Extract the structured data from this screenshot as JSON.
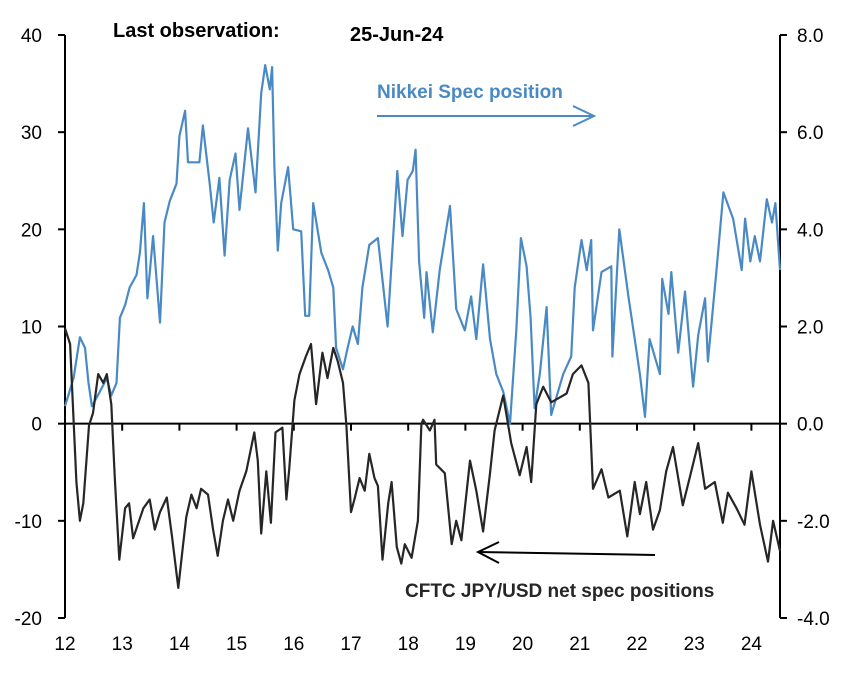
{
  "header": {
    "last_obs_label": "Last observation:",
    "last_obs_date": "25-Jun-24"
  },
  "annotations": {
    "nikkei_label": "Nikkei Spec position",
    "cftc_label": "CFTC JPY/USD net spec positions"
  },
  "colors": {
    "nikkei": "#4a8ac4",
    "cftc": "#262626",
    "axis": "#000000"
  },
  "chart_data": {
    "type": "line",
    "title": "",
    "grid": false,
    "x_ticks": [
      "12",
      "13",
      "14",
      "15",
      "16",
      "17",
      "18",
      "19",
      "20",
      "21",
      "22",
      "23",
      "24"
    ],
    "xlim": [
      12,
      24.5
    ],
    "y_left": {
      "lim": [
        -20,
        40
      ],
      "ticks": [
        "-20",
        "-10",
        "0",
        "10",
        "20",
        "30",
        "40"
      ]
    },
    "y_right": {
      "lim": [
        -4,
        8
      ],
      "ticks": [
        "-4.0",
        "-2.0",
        "0.0",
        "2.0",
        "4.0",
        "6.0",
        "8.0"
      ]
    },
    "series": [
      {
        "name": "Nikkei Spec position",
        "axis": "right",
        "points": [
          [
            12.0,
            0.36
          ],
          [
            12.15,
            0.94
          ],
          [
            12.26,
            1.78
          ],
          [
            12.35,
            1.56
          ],
          [
            12.41,
            0.84
          ],
          [
            12.47,
            0.36
          ],
          [
            12.61,
            0.66
          ],
          [
            12.73,
            0.94
          ],
          [
            12.81,
            0.58
          ],
          [
            12.9,
            0.84
          ],
          [
            12.96,
            2.18
          ],
          [
            13.05,
            2.44
          ],
          [
            13.13,
            2.8
          ],
          [
            13.25,
            3.06
          ],
          [
            13.31,
            3.52
          ],
          [
            13.38,
            4.54
          ],
          [
            13.44,
            2.58
          ],
          [
            13.54,
            3.86
          ],
          [
            13.66,
            2.08
          ],
          [
            13.74,
            4.14
          ],
          [
            13.83,
            4.58
          ],
          [
            13.95,
            4.94
          ],
          [
            14.0,
            5.92
          ],
          [
            14.1,
            6.44
          ],
          [
            14.15,
            5.38
          ],
          [
            14.35,
            5.38
          ],
          [
            14.41,
            6.14
          ],
          [
            14.53,
            4.94
          ],
          [
            14.6,
            4.14
          ],
          [
            14.7,
            5.06
          ],
          [
            14.79,
            3.46
          ],
          [
            14.88,
            5.02
          ],
          [
            14.98,
            5.56
          ],
          [
            15.05,
            4.4
          ],
          [
            15.2,
            6.08
          ],
          [
            15.33,
            4.76
          ],
          [
            15.43,
            6.8
          ],
          [
            15.5,
            7.38
          ],
          [
            15.58,
            6.88
          ],
          [
            15.62,
            7.34
          ],
          [
            15.66,
            5.28
          ],
          [
            15.72,
            3.56
          ],
          [
            15.78,
            4.54
          ],
          [
            15.9,
            5.28
          ],
          [
            15.99,
            4.0
          ],
          [
            16.13,
            3.96
          ],
          [
            16.2,
            2.22
          ],
          [
            16.27,
            2.22
          ],
          [
            16.34,
            4.54
          ],
          [
            16.48,
            3.52
          ],
          [
            16.6,
            3.16
          ],
          [
            16.69,
            2.8
          ],
          [
            16.74,
            1.56
          ],
          [
            16.86,
            1.12
          ],
          [
            16.94,
            1.56
          ],
          [
            17.03,
            2.0
          ],
          [
            17.12,
            1.64
          ],
          [
            17.2,
            2.8
          ],
          [
            17.32,
            3.68
          ],
          [
            17.47,
            3.82
          ],
          [
            17.64,
            2.0
          ],
          [
            17.81,
            5.2
          ],
          [
            17.9,
            3.86
          ],
          [
            17.99,
            5.02
          ],
          [
            18.08,
            5.2
          ],
          [
            18.13,
            5.64
          ],
          [
            18.19,
            3.34
          ],
          [
            18.28,
            2.18
          ],
          [
            18.32,
            3.12
          ],
          [
            18.43,
            1.88
          ],
          [
            18.55,
            3.16
          ],
          [
            18.73,
            4.48
          ],
          [
            18.84,
            2.36
          ],
          [
            18.99,
            1.92
          ],
          [
            19.1,
            2.62
          ],
          [
            19.19,
            1.74
          ],
          [
            19.31,
            3.28
          ],
          [
            19.43,
            1.74
          ],
          [
            19.54,
            1.02
          ],
          [
            19.66,
            0.66
          ],
          [
            19.78,
            0.0
          ],
          [
            19.89,
            1.92
          ],
          [
            19.97,
            3.82
          ],
          [
            20.07,
            3.24
          ],
          [
            20.14,
            2.18
          ],
          [
            20.21,
            0.32
          ],
          [
            20.3,
            1.02
          ],
          [
            20.42,
            2.4
          ],
          [
            20.5,
            0.18
          ],
          [
            20.71,
            1.02
          ],
          [
            20.85,
            1.38
          ],
          [
            20.91,
            2.8
          ],
          [
            21.03,
            3.78
          ],
          [
            21.12,
            3.16
          ],
          [
            21.2,
            3.78
          ],
          [
            21.23,
            1.92
          ],
          [
            21.38,
            3.12
          ],
          [
            21.55,
            3.24
          ],
          [
            21.57,
            1.38
          ],
          [
            21.69,
            4.0
          ],
          [
            21.85,
            2.62
          ],
          [
            22.05,
            1.02
          ],
          [
            22.14,
            0.14
          ],
          [
            22.22,
            1.74
          ],
          [
            22.4,
            1.02
          ],
          [
            22.44,
            2.98
          ],
          [
            22.55,
            2.26
          ],
          [
            22.6,
            3.12
          ],
          [
            22.72,
            1.46
          ],
          [
            22.84,
            2.72
          ],
          [
            22.98,
            0.76
          ],
          [
            23.07,
            1.82
          ],
          [
            23.19,
            2.58
          ],
          [
            23.24,
            1.28
          ],
          [
            23.39,
            3.16
          ],
          [
            23.51,
            4.76
          ],
          [
            23.68,
            4.22
          ],
          [
            23.83,
            3.16
          ],
          [
            23.89,
            4.22
          ],
          [
            23.98,
            3.34
          ],
          [
            24.06,
            3.86
          ],
          [
            24.15,
            3.34
          ],
          [
            24.27,
            4.62
          ],
          [
            24.36,
            4.14
          ],
          [
            24.42,
            4.54
          ],
          [
            24.5,
            3.16
          ]
        ]
      },
      {
        "name": "CFTC JPY/USD net spec positions",
        "axis": "left",
        "points": [
          [
            12.0,
            9.8
          ],
          [
            12.09,
            8.2
          ],
          [
            12.2,
            -6
          ],
          [
            12.26,
            -10
          ],
          [
            12.32,
            -8.2
          ],
          [
            12.42,
            -0.2
          ],
          [
            12.49,
            1.1
          ],
          [
            12.58,
            5.1
          ],
          [
            12.67,
            4.2
          ],
          [
            12.73,
            5.1
          ],
          [
            12.81,
            2
          ],
          [
            12.87,
            -5.6
          ],
          [
            12.95,
            -14
          ],
          [
            13.05,
            -8.7
          ],
          [
            13.12,
            -8.2
          ],
          [
            13.19,
            -11.8
          ],
          [
            13.37,
            -8.7
          ],
          [
            13.48,
            -7.8
          ],
          [
            13.57,
            -10.9
          ],
          [
            13.66,
            -9.1
          ],
          [
            13.78,
            -7.6
          ],
          [
            13.87,
            -11.6
          ],
          [
            13.98,
            -16.9
          ],
          [
            14.06,
            -12.7
          ],
          [
            14.12,
            -9.6
          ],
          [
            14.21,
            -7.3
          ],
          [
            14.3,
            -8.7
          ],
          [
            14.38,
            -6.7
          ],
          [
            14.5,
            -7.3
          ],
          [
            14.59,
            -10.9
          ],
          [
            14.67,
            -13.6
          ],
          [
            14.76,
            -10
          ],
          [
            14.85,
            -7.8
          ],
          [
            14.94,
            -10
          ],
          [
            15.05,
            -6.9
          ],
          [
            15.17,
            -4.9
          ],
          [
            15.31,
            -0.9
          ],
          [
            15.37,
            -3.8
          ],
          [
            15.43,
            -11.3
          ],
          [
            15.52,
            -4.9
          ],
          [
            15.6,
            -10.2
          ],
          [
            15.68,
            -0.9
          ],
          [
            15.8,
            -0.4
          ],
          [
            15.87,
            -7.8
          ],
          [
            15.92,
            -4.7
          ],
          [
            16.01,
            2.4
          ],
          [
            16.1,
            5.1
          ],
          [
            16.21,
            6.9
          ],
          [
            16.3,
            8.2
          ],
          [
            16.39,
            2
          ],
          [
            16.5,
            7.3
          ],
          [
            16.59,
            4.7
          ],
          [
            16.69,
            7.8
          ],
          [
            16.77,
            6.4
          ],
          [
            16.86,
            4.2
          ],
          [
            16.92,
            -0.2
          ],
          [
            17.0,
            -9.1
          ],
          [
            17.06,
            -7.8
          ],
          [
            17.15,
            -5.6
          ],
          [
            17.24,
            -6.9
          ],
          [
            17.32,
            -3.1
          ],
          [
            17.41,
            -5.6
          ],
          [
            17.47,
            -6.4
          ],
          [
            17.55,
            -14
          ],
          [
            17.65,
            -8.2
          ],
          [
            17.71,
            -6
          ],
          [
            17.8,
            -12.7
          ],
          [
            17.88,
            -14.4
          ],
          [
            17.94,
            -12.4
          ],
          [
            18.06,
            -13.8
          ],
          [
            18.17,
            -10
          ],
          [
            18.23,
            0
          ],
          [
            18.26,
            0.4
          ],
          [
            18.38,
            -0.7
          ],
          [
            18.46,
            0.4
          ],
          [
            18.49,
            -4.2
          ],
          [
            18.64,
            -5.1
          ],
          [
            18.76,
            -12.4
          ],
          [
            18.84,
            -10
          ],
          [
            18.93,
            -12
          ],
          [
            19.08,
            -3.8
          ],
          [
            19.19,
            -6.9
          ],
          [
            19.31,
            -11.1
          ],
          [
            19.43,
            -5.1
          ],
          [
            19.51,
            -0.7
          ],
          [
            19.66,
            2.9
          ],
          [
            19.8,
            -2
          ],
          [
            19.95,
            -5.3
          ],
          [
            20.07,
            -2.4
          ],
          [
            20.15,
            -6
          ],
          [
            20.24,
            2
          ],
          [
            20.36,
            3.8
          ],
          [
            20.5,
            2.2
          ],
          [
            20.65,
            2.7
          ],
          [
            20.77,
            3.1
          ],
          [
            20.88,
            5.1
          ],
          [
            21.03,
            6
          ],
          [
            21.15,
            4.2
          ],
          [
            21.23,
            -6.7
          ],
          [
            21.38,
            -4.7
          ],
          [
            21.5,
            -7.6
          ],
          [
            21.7,
            -6.9
          ],
          [
            21.83,
            -11.6
          ],
          [
            21.96,
            -6
          ],
          [
            22.05,
            -9.3
          ],
          [
            22.16,
            -6
          ],
          [
            22.28,
            -10.9
          ],
          [
            22.4,
            -8.9
          ],
          [
            22.51,
            -4.9
          ],
          [
            22.63,
            -2.4
          ],
          [
            22.8,
            -8.4
          ],
          [
            22.92,
            -5.6
          ],
          [
            23.07,
            -2
          ],
          [
            23.19,
            -6.7
          ],
          [
            23.36,
            -6
          ],
          [
            23.5,
            -10.2
          ],
          [
            23.59,
            -7.1
          ],
          [
            23.74,
            -8.7
          ],
          [
            23.88,
            -10.4
          ],
          [
            24.0,
            -4.9
          ],
          [
            24.15,
            -10.4
          ],
          [
            24.29,
            -14.2
          ],
          [
            24.38,
            -10
          ],
          [
            24.5,
            -13.1
          ]
        ]
      }
    ]
  }
}
